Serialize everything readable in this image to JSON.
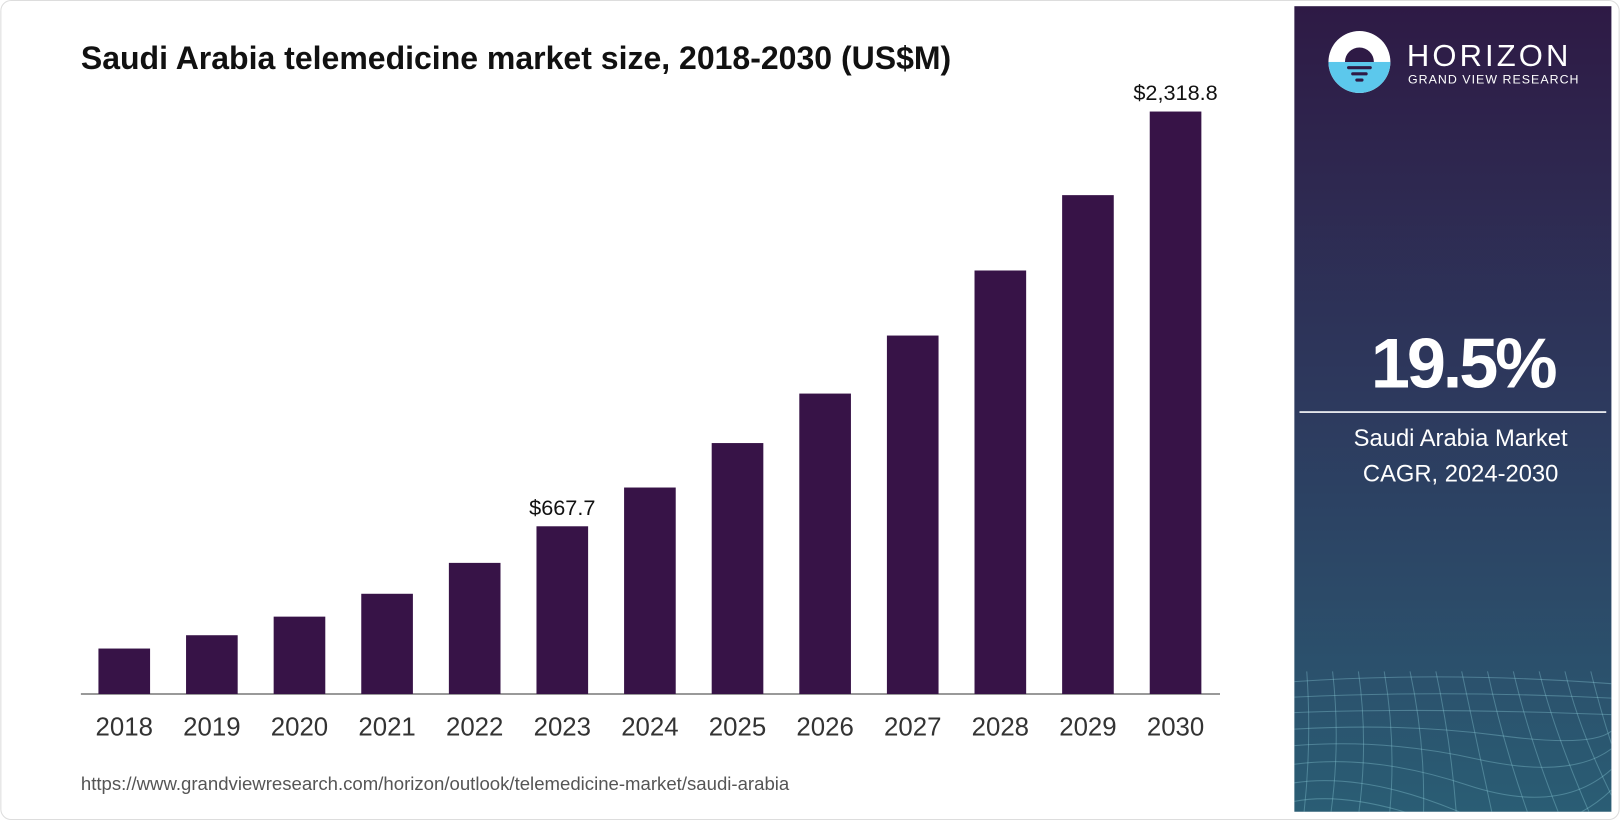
{
  "chart_data": {
    "type": "bar",
    "title": "Saudi Arabia telemedicine market size, 2018-2030 (US$M)",
    "categories": [
      "2018",
      "2019",
      "2020",
      "2021",
      "2022",
      "2023",
      "2024",
      "2025",
      "2026",
      "2027",
      "2028",
      "2029",
      "2030"
    ],
    "values": [
      181,
      234,
      308,
      399,
      522,
      667.7,
      822,
      999,
      1196,
      1427,
      1686,
      1986,
      2318.8
    ],
    "value_labels": [
      null,
      null,
      null,
      null,
      null,
      "$667.7",
      null,
      null,
      null,
      null,
      null,
      null,
      "$2,318.8"
    ],
    "color": "#371347"
  },
  "source": "https://www.grandviewresearch.com/horizon/outlook/telemedicine-market/saudi-arabia",
  "sidebar": {
    "brand": "HORIZON",
    "brand_sub": "GRAND VIEW RESEARCH",
    "cagr": "19.5%",
    "cagr_label_line1": "Saudi Arabia Market",
    "cagr_label_line2": "CAGR, 2024-2030"
  }
}
